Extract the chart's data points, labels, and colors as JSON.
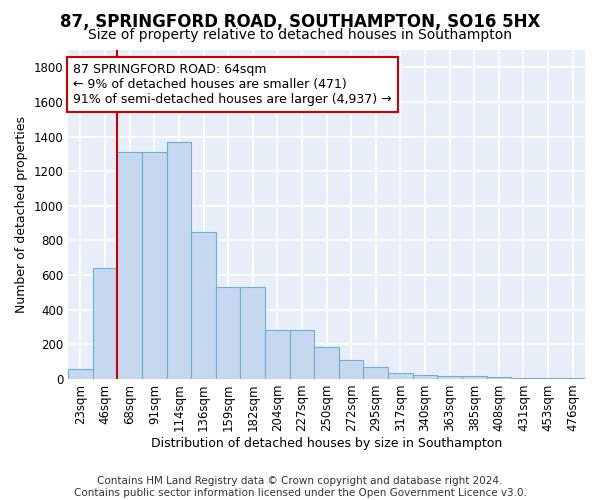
{
  "title": "87, SPRINGFORD ROAD, SOUTHAMPTON, SO16 5HX",
  "subtitle": "Size of property relative to detached houses in Southampton",
  "xlabel": "Distribution of detached houses by size in Southampton",
  "ylabel": "Number of detached properties",
  "categories": [
    "23sqm",
    "46sqm",
    "68sqm",
    "91sqm",
    "114sqm",
    "136sqm",
    "159sqm",
    "182sqm",
    "204sqm",
    "227sqm",
    "250sqm",
    "272sqm",
    "295sqm",
    "317sqm",
    "340sqm",
    "363sqm",
    "385sqm",
    "408sqm",
    "431sqm",
    "453sqm",
    "476sqm"
  ],
  "values": [
    60,
    640,
    1310,
    1310,
    1370,
    850,
    530,
    530,
    280,
    280,
    185,
    110,
    70,
    35,
    25,
    15,
    15,
    10,
    5,
    5,
    5
  ],
  "bar_color": "#c5d8f0",
  "bar_edge_color": "#6baed6",
  "background_color": "#ffffff",
  "plot_bg_color": "#e8eef8",
  "grid_color": "#ffffff",
  "red_line_x": 2,
  "annotation_text": "87 SPRINGFORD ROAD: 64sqm\n← 9% of detached houses are smaller (471)\n91% of semi-detached houses are larger (4,937) →",
  "annotation_box_color": "#ffffff",
  "annotation_box_edge_color": "#cc0000",
  "ylim": [
    0,
    1900
  ],
  "yticks": [
    0,
    200,
    400,
    600,
    800,
    1000,
    1200,
    1400,
    1600,
    1800
  ],
  "footer": "Contains HM Land Registry data © Crown copyright and database right 2024.\nContains public sector information licensed under the Open Government Licence v3.0.",
  "title_fontsize": 12,
  "subtitle_fontsize": 10,
  "xlabel_fontsize": 9,
  "ylabel_fontsize": 9,
  "tick_fontsize": 8.5,
  "annotation_fontsize": 9,
  "footer_fontsize": 7.5
}
